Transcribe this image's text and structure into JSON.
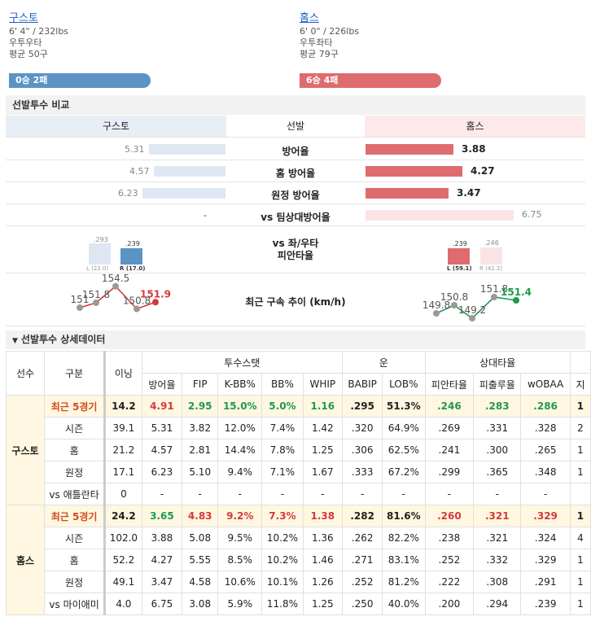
{
  "pitchers": {
    "away": {
      "name": "구스토",
      "body": "6' 4\" / 232lbs",
      "hand": "우투우타",
      "avg": "평균 50구",
      "record": "0승 2패",
      "color": "#5b93c5"
    },
    "home": {
      "name": "홈스",
      "body": "6' 0\" / 226lbs",
      "hand": "우투좌타",
      "avg": "평균 79구",
      "record": "6승 4패",
      "color": "#de6c6e"
    }
  },
  "compare": {
    "section_title": "선발투수 비교",
    "center_header": "선발",
    "rows": [
      {
        "label": "방어율",
        "away": "5.31",
        "home": "3.88",
        "away_frac": 0.55,
        "home_frac": 0.58
      },
      {
        "label": "홈 방어율",
        "away": "4.57",
        "home": "4.27",
        "away_frac": 0.52,
        "home_frac": 0.64
      },
      {
        "label": "원정 방어율",
        "away": "6.23",
        "home": "3.47",
        "away_frac": 0.6,
        "home_frac": 0.55
      },
      {
        "label": "vs 팀상대방어율",
        "away": "-",
        "home": "6.75",
        "away_frac": 0,
        "home_frac": 1.0
      }
    ],
    "split_label_1": "vs 좌/우타",
    "split_label_2": "피안타율",
    "away_split": {
      "l_val": ".293",
      "r_val": ".239",
      "l_cap": "L (22.0)",
      "r_cap": "R (17.0)"
    },
    "home_split": {
      "l_val": ".239",
      "r_val": ".246",
      "l_cap": "L (59.1)",
      "r_cap": "R (42.2)"
    },
    "velo_label": "최근 구속 추이 (km/h)",
    "away_velo": [
      "151",
      "151.8",
      "154.5",
      "150.8",
      "151.9"
    ],
    "home_velo": [
      "149.8",
      "150.8",
      "149.2",
      "151.8",
      "151.4"
    ]
  },
  "detail": {
    "section_title": "선발투수 상세데이터",
    "headers": {
      "player": "선수",
      "type": "구분",
      "inn": "이닝",
      "grp_stat": "투수스탯",
      "grp_luck": "운",
      "grp_opp": "상대타율",
      "cols": [
        "방어율",
        "FIP",
        "K-BB%",
        "BB%",
        "WHIP",
        "BABIP",
        "LOB%",
        "피안타율",
        "피출루율",
        "wOBAA",
        "지"
      ]
    },
    "away_rows": [
      [
        "최근 5경기",
        "14.2",
        "4.91",
        "2.95",
        "15.0%",
        "5.0%",
        "1.16",
        ".295",
        "51.3%",
        ".246",
        ".283",
        ".286",
        "1"
      ],
      [
        "시즌",
        "39.1",
        "5.31",
        "3.82",
        "12.0%",
        "7.4%",
        "1.42",
        ".320",
        "64.9%",
        ".269",
        ".331",
        ".328",
        "2"
      ],
      [
        "홈",
        "21.2",
        "4.57",
        "2.81",
        "14.4%",
        "7.8%",
        "1.25",
        ".306",
        "62.5%",
        ".241",
        ".300",
        ".265",
        "1"
      ],
      [
        "원정",
        "17.1",
        "6.23",
        "5.10",
        "9.4%",
        "7.1%",
        "1.67",
        ".333",
        "67.2%",
        ".299",
        ".365",
        ".348",
        "1"
      ],
      [
        "vs 애틀란타",
        "0",
        "-",
        "-",
        "-",
        "-",
        "-",
        "-",
        "-",
        "-",
        "-",
        "-",
        ""
      ]
    ],
    "home_rows": [
      [
        "최근 5경기",
        "24.2",
        "3.65",
        "4.83",
        "9.2%",
        "7.3%",
        "1.38",
        ".282",
        "81.6%",
        ".260",
        ".321",
        ".329",
        "1"
      ],
      [
        "시즌",
        "102.0",
        "3.88",
        "5.08",
        "9.5%",
        "10.2%",
        "1.36",
        ".262",
        "82.2%",
        ".238",
        ".321",
        ".324",
        "4"
      ],
      [
        "홈",
        "52.2",
        "4.27",
        "5.55",
        "8.5%",
        "10.2%",
        "1.46",
        ".271",
        "83.1%",
        ".252",
        ".332",
        ".329",
        "1"
      ],
      [
        "원정",
        "49.1",
        "3.47",
        "4.58",
        "10.6%",
        "10.1%",
        "1.26",
        ".252",
        "81.2%",
        ".222",
        ".308",
        ".291",
        "1"
      ],
      [
        "vs 마이애미",
        "4.0",
        "6.75",
        "3.08",
        "5.9%",
        "11.8%",
        "1.25",
        ".250",
        "40.0%",
        ".200",
        ".294",
        ".239",
        "1"
      ]
    ]
  }
}
